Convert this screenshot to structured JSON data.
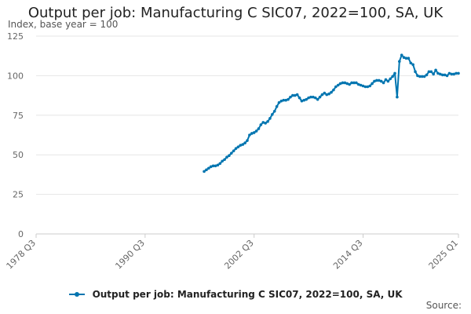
{
  "colors": {
    "series": "#0075b0",
    "grid": "#e6e6e6",
    "axis": "#cccccc",
    "tick_text": "#666666"
  },
  "chart_data": {
    "type": "line",
    "title": "Output per job: Manufacturing C SIC07, 2022=100, SA, UK",
    "subtitle": "Index, base year = 100",
    "source": "Source:",
    "xlabel": "",
    "ylabel": "Index, base year = 100",
    "xlim": [
      "1978 Q3",
      "2025 Q1"
    ],
    "ylim": [
      0,
      125
    ],
    "x_tick_labels": [
      "1978 Q3",
      "1990 Q3",
      "2002 Q3",
      "2014 Q3",
      "2025 Q1"
    ],
    "y_tick_labels": [
      "0",
      "25",
      "50",
      "75",
      "100",
      "125"
    ],
    "y_ticks": [
      0,
      25,
      50,
      75,
      100,
      125
    ],
    "grid": "horizontal",
    "legend": "bottom",
    "series": [
      {
        "name": "Output per job: Manufacturing C SIC07, 2022=100, SA, UK",
        "points": [
          [
            "1997 Q1",
            39.5
          ],
          [
            "1997 Q2",
            40.5
          ],
          [
            "1997 Q3",
            41.5
          ],
          [
            "1997 Q4",
            42.5
          ],
          [
            "1998 Q1",
            43.0
          ],
          [
            "1998 Q2",
            43.0
          ],
          [
            "1998 Q3",
            43.5
          ],
          [
            "1998 Q4",
            44.5
          ],
          [
            "1999 Q1",
            46.0
          ],
          [
            "1999 Q2",
            47.0
          ],
          [
            "1999 Q3",
            48.5
          ],
          [
            "1999 Q4",
            49.5
          ],
          [
            "2000 Q1",
            51.0
          ],
          [
            "2000 Q2",
            52.5
          ],
          [
            "2000 Q3",
            54.0
          ],
          [
            "2000 Q4",
            55.0
          ],
          [
            "2001 Q1",
            56.0
          ],
          [
            "2001 Q2",
            56.5
          ],
          [
            "2001 Q3",
            57.5
          ],
          [
            "2001 Q4",
            59.0
          ],
          [
            "2002 Q1",
            62.5
          ],
          [
            "2002 Q2",
            63.5
          ],
          [
            "2002 Q3",
            64.0
          ],
          [
            "2002 Q4",
            65.0
          ],
          [
            "2003 Q1",
            66.5
          ],
          [
            "2003 Q2",
            69.0
          ],
          [
            "2003 Q3",
            70.5
          ],
          [
            "2003 Q4",
            70.0
          ],
          [
            "2004 Q1",
            71.0
          ],
          [
            "2004 Q2",
            73.0
          ],
          [
            "2004 Q3",
            75.5
          ],
          [
            "2004 Q4",
            77.5
          ],
          [
            "2005 Q1",
            80.5
          ],
          [
            "2005 Q2",
            83.0
          ],
          [
            "2005 Q3",
            84.0
          ],
          [
            "2005 Q4",
            84.5
          ],
          [
            "2006 Q1",
            84.5
          ],
          [
            "2006 Q2",
            85.0
          ],
          [
            "2006 Q3",
            86.5
          ],
          [
            "2006 Q4",
            87.5
          ],
          [
            "2007 Q1",
            87.5
          ],
          [
            "2007 Q2",
            88.0
          ],
          [
            "2007 Q3",
            86.0
          ],
          [
            "2007 Q4",
            84.0
          ],
          [
            "2008 Q1",
            84.5
          ],
          [
            "2008 Q2",
            85.0
          ],
          [
            "2008 Q3",
            86.0
          ],
          [
            "2008 Q4",
            86.5
          ],
          [
            "2009 Q1",
            86.5
          ],
          [
            "2009 Q2",
            86.0
          ],
          [
            "2009 Q3",
            85.0
          ],
          [
            "2009 Q4",
            86.5
          ],
          [
            "2010 Q1",
            88.0
          ],
          [
            "2010 Q2",
            89.0
          ],
          [
            "2010 Q3",
            88.0
          ],
          [
            "2010 Q4",
            88.5
          ],
          [
            "2011 Q1",
            89.5
          ],
          [
            "2011 Q2",
            91.0
          ],
          [
            "2011 Q3",
            93.0
          ],
          [
            "2011 Q4",
            94.0
          ],
          [
            "2012 Q1",
            95.0
          ],
          [
            "2012 Q2",
            95.5
          ],
          [
            "2012 Q3",
            95.5
          ],
          [
            "2012 Q4",
            95.0
          ],
          [
            "2013 Q1",
            94.5
          ],
          [
            "2013 Q2",
            95.5
          ],
          [
            "2013 Q3",
            95.5
          ],
          [
            "2013 Q4",
            95.5
          ],
          [
            "2014 Q1",
            94.5
          ],
          [
            "2014 Q2",
            94.0
          ],
          [
            "2014 Q3",
            93.5
          ],
          [
            "2014 Q4",
            93.0
          ],
          [
            "2015 Q1",
            93.0
          ],
          [
            "2015 Q2",
            93.5
          ],
          [
            "2015 Q3",
            95.0
          ],
          [
            "2015 Q4",
            96.5
          ],
          [
            "2016 Q1",
            97.0
          ],
          [
            "2016 Q2",
            97.0
          ],
          [
            "2016 Q3",
            96.5
          ],
          [
            "2016 Q4",
            95.5
          ],
          [
            "2017 Q1",
            97.5
          ],
          [
            "2017 Q2",
            96.5
          ],
          [
            "2017 Q3",
            98.0
          ],
          [
            "2017 Q4",
            99.5
          ],
          [
            "2018 Q1",
            101.5
          ],
          [
            "2018 Q2",
            86.5
          ],
          [
            "2018 Q3",
            109.0
          ],
          [
            "2018 Q4",
            113.0
          ],
          [
            "2019 Q1",
            111.5
          ],
          [
            "2019 Q2",
            111.0
          ],
          [
            "2019 Q3",
            111.0
          ],
          [
            "2019 Q4",
            108.0
          ],
          [
            "2020 Q1",
            107.0
          ],
          [
            "2020 Q2",
            102.5
          ],
          [
            "2020 Q3",
            100.0
          ],
          [
            "2020 Q4",
            99.5
          ],
          [
            "2021 Q1",
            99.5
          ],
          [
            "2021 Q2",
            99.5
          ],
          [
            "2021 Q3",
            100.5
          ],
          [
            "2021 Q4",
            102.5
          ],
          [
            "2022 Q1",
            102.5
          ],
          [
            "2022 Q2",
            101.0
          ],
          [
            "2022 Q3",
            103.5
          ],
          [
            "2022 Q4",
            101.5
          ],
          [
            "2023 Q1",
            101.0
          ],
          [
            "2023 Q2",
            100.5
          ],
          [
            "2023 Q3",
            100.5
          ],
          [
            "2023 Q4",
            100.0
          ],
          [
            "2024 Q1",
            101.5
          ],
          [
            "2024 Q2",
            101.0
          ],
          [
            "2024 Q3",
            101.0
          ],
          [
            "2024 Q4",
            101.5
          ],
          [
            "2025 Q1",
            101.5
          ]
        ]
      }
    ]
  }
}
